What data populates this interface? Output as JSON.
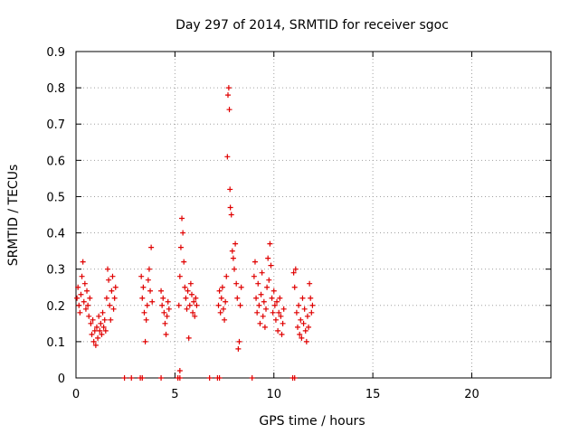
{
  "chart_data": {
    "type": "scatter",
    "title": "Day 297 of 2014, SRMTID for receiver sgoc",
    "xlabel": "GPS time / hours",
    "ylabel": "SRMTID / TECUs",
    "xlim": [
      0,
      24
    ],
    "ylim": [
      0,
      0.9
    ],
    "x_ticks": [
      0,
      5,
      10,
      15,
      20
    ],
    "y_ticks": [
      0,
      0.1,
      0.2,
      0.3,
      0.4,
      0.5,
      0.6,
      0.7,
      0.8,
      0.9
    ],
    "grid": true,
    "marker": "+",
    "color": "#e00000",
    "series": [
      {
        "name": "SRMTID",
        "points": [
          [
            0.05,
            0.22
          ],
          [
            0.1,
            0.25
          ],
          [
            0.15,
            0.2
          ],
          [
            0.2,
            0.18
          ],
          [
            0.25,
            0.23
          ],
          [
            0.3,
            0.28
          ],
          [
            0.35,
            0.32
          ],
          [
            0.4,
            0.21
          ],
          [
            0.45,
            0.26
          ],
          [
            0.5,
            0.19
          ],
          [
            0.55,
            0.24
          ],
          [
            0.6,
            0.2
          ],
          [
            0.65,
            0.17
          ],
          [
            0.7,
            0.22
          ],
          [
            0.75,
            0.15
          ],
          [
            0.8,
            0.12
          ],
          [
            0.85,
            0.16
          ],
          [
            0.9,
            0.1
          ],
          [
            0.95,
            0.13
          ],
          [
            1.0,
            0.09
          ],
          [
            1.05,
            0.14
          ],
          [
            1.1,
            0.11
          ],
          [
            1.15,
            0.17
          ],
          [
            1.2,
            0.13
          ],
          [
            1.25,
            0.15
          ],
          [
            1.3,
            0.12
          ],
          [
            1.35,
            0.18
          ],
          [
            1.4,
            0.14
          ],
          [
            1.45,
            0.16
          ],
          [
            1.5,
            0.13
          ],
          [
            1.55,
            0.22
          ],
          [
            1.6,
            0.3
          ],
          [
            1.65,
            0.27
          ],
          [
            1.7,
            0.2
          ],
          [
            1.75,
            0.16
          ],
          [
            1.8,
            0.24
          ],
          [
            1.85,
            0.28
          ],
          [
            1.9,
            0.19
          ],
          [
            1.95,
            0.22
          ],
          [
            2.0,
            0.25
          ],
          [
            3.3,
            0.28
          ],
          [
            3.35,
            0.22
          ],
          [
            3.4,
            0.25
          ],
          [
            3.45,
            0.18
          ],
          [
            3.5,
            0.1
          ],
          [
            3.55,
            0.16
          ],
          [
            3.6,
            0.2
          ],
          [
            3.65,
            0.27
          ],
          [
            3.7,
            0.3
          ],
          [
            3.75,
            0.24
          ],
          [
            3.8,
            0.36
          ],
          [
            3.85,
            0.21
          ],
          [
            4.3,
            0.24
          ],
          [
            4.35,
            0.2
          ],
          [
            4.4,
            0.22
          ],
          [
            4.45,
            0.18
          ],
          [
            4.5,
            0.15
          ],
          [
            4.55,
            0.12
          ],
          [
            4.6,
            0.17
          ],
          [
            4.65,
            0.21
          ],
          [
            4.7,
            0.19
          ],
          [
            5.2,
            0.2
          ],
          [
            5.25,
            0.28
          ],
          [
            5.3,
            0.36
          ],
          [
            5.35,
            0.44
          ],
          [
            5.4,
            0.4
          ],
          [
            5.45,
            0.32
          ],
          [
            5.5,
            0.25
          ],
          [
            5.55,
            0.22
          ],
          [
            5.6,
            0.19
          ],
          [
            5.65,
            0.24
          ],
          [
            5.7,
            0.11
          ],
          [
            5.75,
            0.2
          ],
          [
            5.8,
            0.26
          ],
          [
            5.85,
            0.23
          ],
          [
            5.9,
            0.18
          ],
          [
            5.95,
            0.21
          ],
          [
            6.0,
            0.17
          ],
          [
            6.05,
            0.22
          ],
          [
            6.1,
            0.2
          ],
          [
            5.25,
            0.02
          ],
          [
            7.2,
            0.2
          ],
          [
            7.25,
            0.24
          ],
          [
            7.3,
            0.18
          ],
          [
            7.35,
            0.22
          ],
          [
            7.4,
            0.25
          ],
          [
            7.45,
            0.19
          ],
          [
            7.5,
            0.16
          ],
          [
            7.55,
            0.21
          ],
          [
            7.6,
            0.28
          ],
          [
            7.65,
            0.61
          ],
          [
            7.68,
            0.78
          ],
          [
            7.72,
            0.8
          ],
          [
            7.75,
            0.74
          ],
          [
            7.78,
            0.52
          ],
          [
            7.8,
            0.47
          ],
          [
            7.85,
            0.45
          ],
          [
            7.9,
            0.35
          ],
          [
            7.95,
            0.33
          ],
          [
            8.0,
            0.3
          ],
          [
            8.05,
            0.37
          ],
          [
            8.1,
            0.26
          ],
          [
            8.15,
            0.22
          ],
          [
            8.2,
            0.08
          ],
          [
            8.25,
            0.1
          ],
          [
            8.3,
            0.2
          ],
          [
            8.35,
            0.25
          ],
          [
            9.0,
            0.28
          ],
          [
            9.05,
            0.32
          ],
          [
            9.1,
            0.22
          ],
          [
            9.15,
            0.18
          ],
          [
            9.2,
            0.26
          ],
          [
            9.25,
            0.2
          ],
          [
            9.3,
            0.15
          ],
          [
            9.35,
            0.23
          ],
          [
            9.4,
            0.29
          ],
          [
            9.45,
            0.17
          ],
          [
            9.5,
            0.21
          ],
          [
            9.55,
            0.14
          ],
          [
            9.6,
            0.19
          ],
          [
            9.65,
            0.25
          ],
          [
            9.7,
            0.33
          ],
          [
            9.75,
            0.27
          ],
          [
            9.8,
            0.37
          ],
          [
            9.85,
            0.31
          ],
          [
            9.9,
            0.22
          ],
          [
            9.95,
            0.18
          ],
          [
            10.0,
            0.24
          ],
          [
            10.05,
            0.2
          ],
          [
            10.1,
            0.16
          ],
          [
            10.15,
            0.21
          ],
          [
            10.2,
            0.13
          ],
          [
            10.25,
            0.18
          ],
          [
            10.3,
            0.22
          ],
          [
            10.35,
            0.17
          ],
          [
            10.4,
            0.12
          ],
          [
            10.45,
            0.15
          ],
          [
            10.5,
            0.19
          ],
          [
            11.0,
            0.29
          ],
          [
            11.05,
            0.25
          ],
          [
            11.1,
            0.3
          ],
          [
            11.15,
            0.18
          ],
          [
            11.2,
            0.14
          ],
          [
            11.25,
            0.2
          ],
          [
            11.3,
            0.12
          ],
          [
            11.35,
            0.16
          ],
          [
            11.4,
            0.11
          ],
          [
            11.45,
            0.22
          ],
          [
            11.5,
            0.15
          ],
          [
            11.55,
            0.19
          ],
          [
            11.6,
            0.13
          ],
          [
            11.65,
            0.1
          ],
          [
            11.7,
            0.17
          ],
          [
            11.75,
            0.14
          ],
          [
            11.8,
            0.26
          ],
          [
            11.85,
            0.22
          ],
          [
            11.9,
            0.18
          ],
          [
            11.95,
            0.2
          ],
          [
            2.45,
            0
          ],
          [
            2.8,
            0
          ],
          [
            3.25,
            0
          ],
          [
            3.35,
            0
          ],
          [
            4.3,
            0
          ],
          [
            5.15,
            0
          ],
          [
            5.25,
            0
          ],
          [
            6.75,
            0
          ],
          [
            7.15,
            0
          ],
          [
            7.25,
            0
          ],
          [
            8.9,
            0
          ],
          [
            10.95,
            0
          ],
          [
            11.05,
            0
          ]
        ]
      }
    ]
  }
}
